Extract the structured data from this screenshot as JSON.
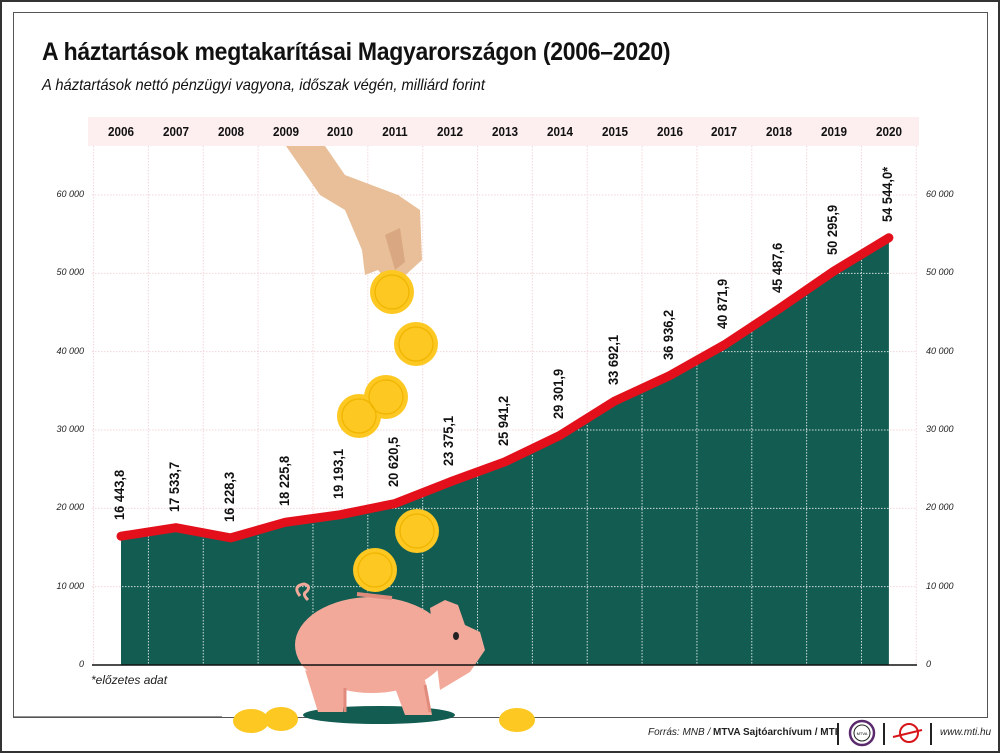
{
  "header": {
    "title": "A háztartások megtakarításai Magyarországon (2006–2020)",
    "subtitle": "A háztartások nettó pénzügyi vagyona, időszak végén, milliárd forint"
  },
  "chart_data": {
    "type": "area",
    "title": "A háztartások megtakarításai Magyarországon (2006–2020)",
    "subtitle": "A háztartások nettó pénzügyi vagyona, időszak végén, milliárd forint",
    "xlabel": "",
    "ylabel": "milliárd forint",
    "categories": [
      "2006",
      "2007",
      "2008",
      "2009",
      "2010",
      "2011",
      "2012",
      "2013",
      "2014",
      "2015",
      "2016",
      "2017",
      "2018",
      "2019",
      "2020"
    ],
    "values": [
      16443.8,
      17533.7,
      16228.3,
      18225.8,
      19193.1,
      20620.5,
      23375.1,
      25941.2,
      29301.9,
      33692.1,
      36936.2,
      40871.9,
      45487.6,
      50295.9,
      54544.0
    ],
    "data_labels": [
      "16 443,8",
      "17 533,7",
      "16 228,3",
      "18 225,8",
      "19 193,1",
      "20 620,5",
      "23 375,1",
      "25 941,2",
      "29 301,9",
      "33 692,1",
      "36 936,2",
      "40 871,9",
      "45 487,6",
      "50 295,9",
      "54 544,0*"
    ],
    "ylim": [
      0,
      60000
    ],
    "yticks": [
      "0",
      "10 000",
      "20 000",
      "30 000",
      "40 000",
      "50 000",
      "60 000"
    ],
    "grid": true,
    "legend": "none",
    "line_color": "#e3101b",
    "area_color": "#135c52",
    "year_band_color": "#fdeef0",
    "annotations": [
      "*előzetes adat"
    ]
  },
  "footnote": "*előzetes adat",
  "footer": {
    "source_prefix": "Forrás: MNB / ",
    "source_bold": "MTVA Sajtóarchívum / MTI",
    "logo1": "MTVA",
    "website": "www.mti.hu"
  }
}
